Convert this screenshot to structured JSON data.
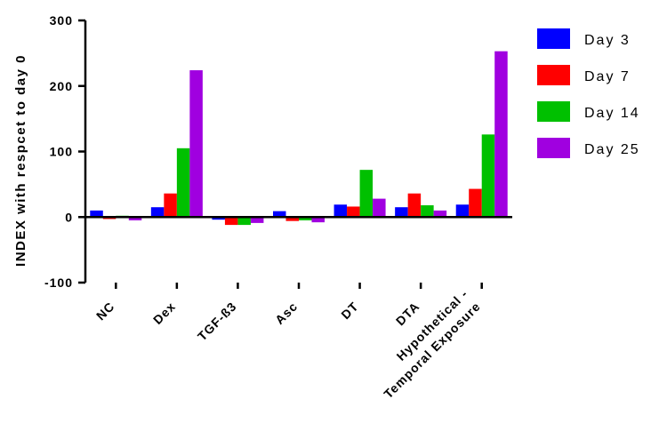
{
  "chart_data": {
    "type": "bar",
    "title": "",
    "xlabel": "",
    "ylabel": "INDEX with respcet to day 0",
    "ylim": [
      -100,
      300
    ],
    "yticks": [
      -100,
      0,
      100,
      200,
      300
    ],
    "grid": false,
    "legend_position": "top-right",
    "categories": [
      "NC",
      "Dex",
      "TGF-ß3",
      "Asc",
      "DT",
      "DTA",
      "Hypothetical -\nTemporal Exposure"
    ],
    "category_lines": [
      [
        "NC"
      ],
      [
        "Dex"
      ],
      [
        "TGF-ß3"
      ],
      [
        "Asc"
      ],
      [
        "DT"
      ],
      [
        "DTA"
      ],
      [
        "Hypothetical -",
        "Temporal Exposure"
      ]
    ],
    "series": [
      {
        "name": "Day 3",
        "color": "#0000ff",
        "values": [
          10,
          15,
          -4,
          9,
          19,
          15,
          19
        ]
      },
      {
        "name": "Day 7",
        "color": "#ff0000",
        "values": [
          -3,
          36,
          -12,
          -6,
          16,
          36,
          43
        ]
      },
      {
        "name": "Day 14",
        "color": "#00c000",
        "values": [
          2,
          105,
          -12,
          -5,
          72,
          18,
          126
        ]
      },
      {
        "name": "Day 25",
        "color": "#a000e0",
        "values": [
          -5,
          224,
          -9,
          -8,
          28,
          10,
          253
        ]
      }
    ]
  }
}
